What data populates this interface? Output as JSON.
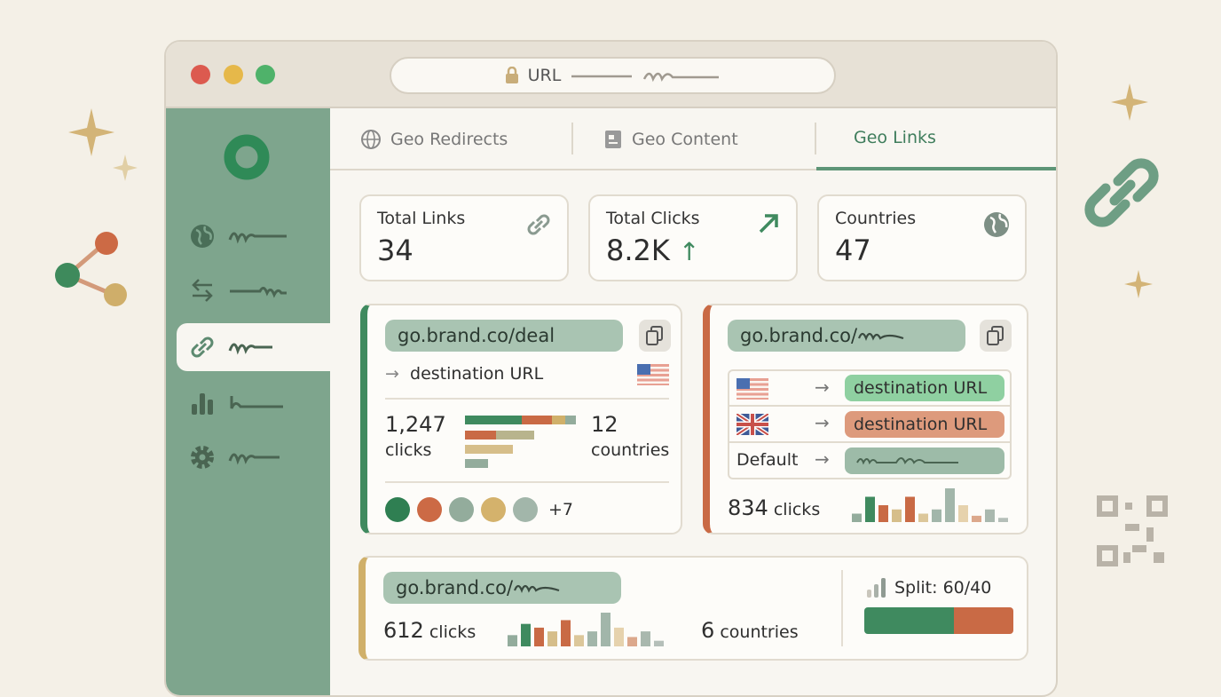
{
  "browser": {
    "url_label": "URL",
    "traffic_lights": [
      "#dc5a4f",
      "#e6b84a",
      "#4fb26a"
    ]
  },
  "sidebar": {
    "items": [
      {
        "icon": "globe-icon"
      },
      {
        "icon": "arrows-swap-icon"
      },
      {
        "icon": "link-icon",
        "active": true
      },
      {
        "icon": "bar-chart-icon"
      },
      {
        "icon": "gear-icon"
      }
    ]
  },
  "tabs": [
    {
      "label": "Geo Redirects",
      "icon": "globe-icon"
    },
    {
      "label": "Geo Content",
      "icon": "document-icon"
    },
    {
      "label": "Geo Links",
      "active": true
    }
  ],
  "stats": [
    {
      "label": "Total Links",
      "value": "34",
      "icon": "link-icon"
    },
    {
      "label": "Total Clicks",
      "value": "8.2K",
      "trend": "↑",
      "icon": "trend-up-arrow-icon"
    },
    {
      "label": "Countries",
      "value": "47",
      "icon": "globe-icon"
    }
  ],
  "links": [
    {
      "short_url": "go.brand.co/deal",
      "destination": "destination URL",
      "arrow": "→",
      "clicks": "1,247",
      "clicks_label": "clicks",
      "countries": "12",
      "countries_label": "countries",
      "more_countries": "+7",
      "accent": "#3f8a5f"
    },
    {
      "short_url": "go.brand.co/",
      "accent": "#c96a45",
      "rules": [
        {
          "flag": "US",
          "destination": "destination URL",
          "color": "#8fd0a1"
        },
        {
          "flag": "UK",
          "destination": "destination URL",
          "color": "#dd9a7c"
        },
        {
          "label": "Default",
          "color": "#9dbba8"
        }
      ],
      "clicks": "834",
      "clicks_label": "clicks",
      "sparkline": [
        2,
        6,
        4,
        3,
        6,
        2,
        3,
        8,
        4,
        1.5,
        3,
        1
      ]
    },
    {
      "short_url": "go.brand.co/",
      "accent": "#d0b06a",
      "clicks": "612",
      "clicks_label": "clicks",
      "sparkline": [
        3,
        6,
        5,
        4,
        7,
        3,
        4,
        9,
        5,
        2.5,
        4,
        1.5
      ],
      "countries": "6",
      "countries_label": "countries",
      "split_label": "Split: 60/40",
      "split": [
        60,
        40
      ]
    }
  ],
  "colors": {
    "green": "#3f8a5f",
    "orange": "#c96a45",
    "sand": "#d0b06a",
    "sage": "#93ac9c"
  }
}
